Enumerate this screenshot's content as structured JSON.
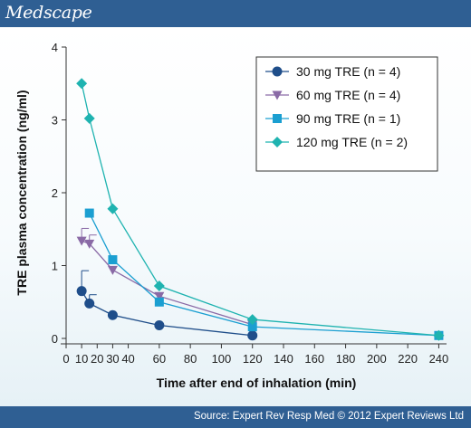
{
  "header": {
    "brand": "Medscape"
  },
  "footer": {
    "source": "Source: Expert Rev Resp Med © 2012 Expert Reviews Ltd"
  },
  "chart_data": {
    "type": "line",
    "xlabel": "Time after end of inhalation (min)",
    "ylabel": "TRE plasma concentration (ng/ml)",
    "xlim": [
      0,
      245
    ],
    "ylim": [
      0,
      4
    ],
    "xticks": [
      0,
      10,
      20,
      30,
      40,
      60,
      80,
      100,
      120,
      140,
      160,
      180,
      200,
      220,
      240
    ],
    "yticks": [
      0,
      1,
      2,
      3,
      4
    ],
    "legend_position": "top-right",
    "series": [
      {
        "name": "30 mg TRE (n = 4)",
        "marker": "circle",
        "color": "#1f4e8a",
        "x": [
          10,
          15,
          30,
          60,
          120
        ],
        "y": [
          0.65,
          0.48,
          0.32,
          0.18,
          0.04
        ],
        "err": [
          0.28,
          0.12,
          0,
          0,
          0
        ]
      },
      {
        "name": "60 mg TRE (n = 4)",
        "marker": "triangle-down",
        "color": "#8a6aa6",
        "x": [
          10,
          15,
          30,
          60,
          120
        ],
        "y": [
          1.34,
          1.3,
          0.94,
          0.58,
          0.19
        ],
        "err": [
          0.17,
          0.12,
          0,
          0,
          0
        ]
      },
      {
        "name": "90 mg TRE (n = 1)",
        "marker": "square",
        "color": "#1b9fd1",
        "x": [
          15,
          30,
          60,
          120,
          240
        ],
        "y": [
          1.72,
          1.08,
          0.5,
          0.16,
          0.04
        ],
        "err": [
          0,
          0,
          0,
          0,
          0
        ]
      },
      {
        "name": "120 mg TRE (n = 2)",
        "marker": "diamond",
        "color": "#1fb3b0",
        "x": [
          10,
          15,
          30,
          60,
          120,
          240
        ],
        "y": [
          3.5,
          3.02,
          1.78,
          0.72,
          0.26,
          0.04
        ],
        "err": [
          0,
          0,
          0,
          0,
          0,
          0
        ]
      }
    ]
  }
}
